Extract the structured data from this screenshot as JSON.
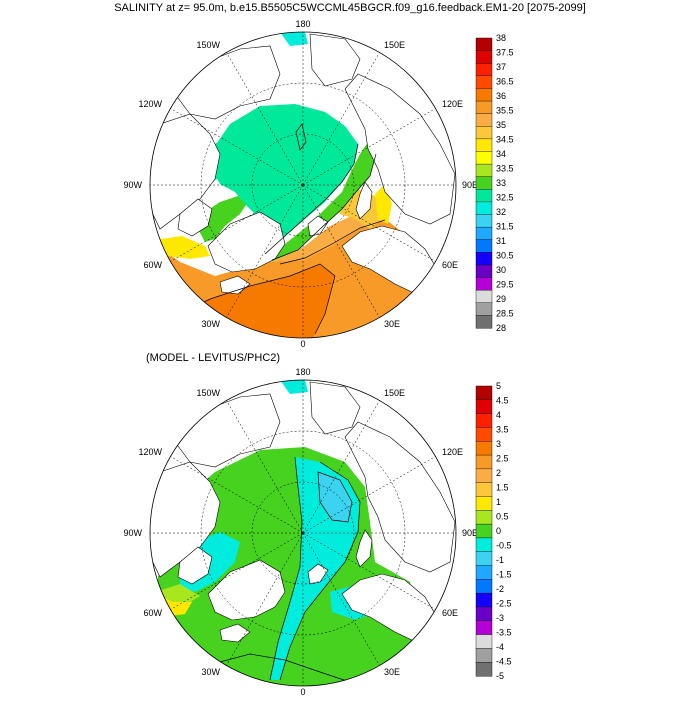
{
  "title": "SALINITY at z=  95.0m, b.e15.B5505C5WCCML45BGCR.f09_g16.feedback.EM1-20 [2075-2099]",
  "diff_title": "(MODEL - LEVITUS/PHC2)",
  "lon_labels": [
    "180",
    "150E",
    "120E",
    "90E",
    "60E",
    "30E",
    "0",
    "30W",
    "60W",
    "90W",
    "120W",
    "150W"
  ],
  "maps": [
    {
      "name": "salinity",
      "colorbar": {
        "labels": [
          "38",
          "37.5",
          "37",
          "36.5",
          "36",
          "35.5",
          "35",
          "34.5",
          "34",
          "33.5",
          "33",
          "32.5",
          "32",
          "31.5",
          "31",
          "30.5",
          "30",
          "29.5",
          "29",
          "28.5",
          "28"
        ],
        "colors": [
          "#b40000",
          "#e00000",
          "#ff2000",
          "#ff4a00",
          "#f77a00",
          "#f89a28",
          "#f9ad44",
          "#fbc83a",
          "#ffe800",
          "#ffff00",
          "#a8e61e",
          "#46d21e",
          "#00e89a",
          "#00ecdc",
          "#3cd3f0",
          "#1ea8ff",
          "#0078ff",
          "#1400ff",
          "#6a00c8",
          "#b400d6",
          "#dcdcdc",
          "#a0a0a0",
          "#707070"
        ]
      }
    },
    {
      "name": "difference",
      "colorbar": {
        "labels": [
          "5",
          "4.5",
          "4",
          "3.5",
          "3",
          "2.5",
          "2",
          "1.5",
          "1",
          "0.5",
          "0",
          "-0.5",
          "-1",
          "-1.5",
          "-2",
          "-2.5",
          "-3",
          "-3.5",
          "-4",
          "-4.5",
          "-5"
        ],
        "colors": [
          "#b40000",
          "#e00000",
          "#ff2000",
          "#ff4a00",
          "#f77a00",
          "#f89a28",
          "#f9ad44",
          "#fbc83a",
          "#ffe800",
          "#a8e61e",
          "#46d21e",
          "#00ecdc",
          "#3cd3f0",
          "#1ea8ff",
          "#0078ff",
          "#1400ff",
          "#6a00c8",
          "#b400d6",
          "#dcdcdc",
          "#a0a0a0",
          "#707070"
        ]
      }
    }
  ]
}
